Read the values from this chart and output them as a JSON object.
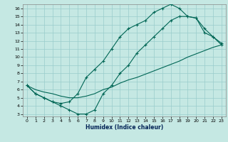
{
  "bg_color": "#c5e8e3",
  "grid_color": "#99cccc",
  "line_color": "#006655",
  "xlabel": "Humidex (Indice chaleur)",
  "xlim": [
    -0.5,
    23.5
  ],
  "ylim": [
    2.7,
    16.5
  ],
  "xticks": [
    0,
    1,
    2,
    3,
    4,
    5,
    6,
    7,
    8,
    9,
    10,
    11,
    12,
    13,
    14,
    15,
    16,
    17,
    18,
    19,
    20,
    21,
    22,
    23
  ],
  "yticks": [
    3,
    4,
    5,
    6,
    7,
    8,
    9,
    10,
    11,
    12,
    13,
    14,
    15,
    16
  ],
  "line1_x": [
    0,
    1,
    2,
    3,
    4,
    5,
    6,
    7,
    8,
    9,
    10,
    11,
    12,
    13,
    14,
    15,
    16,
    17,
    18,
    19,
    20,
    21,
    22,
    23
  ],
  "line1_y": [
    6.5,
    6.0,
    5.7,
    5.5,
    5.2,
    5.0,
    5.0,
    5.2,
    5.5,
    6.0,
    6.3,
    6.8,
    7.2,
    7.5,
    7.9,
    8.3,
    8.7,
    9.1,
    9.5,
    10.0,
    10.4,
    10.8,
    11.2,
    11.5
  ],
  "line2_x": [
    0,
    1,
    2,
    3,
    4,
    5,
    6,
    7,
    8,
    9,
    10,
    11,
    12,
    13,
    14,
    15,
    16,
    17,
    18,
    19,
    20,
    21,
    22,
    23
  ],
  "line2_y": [
    6.5,
    5.5,
    5.0,
    4.5,
    4.0,
    3.5,
    3.0,
    3.0,
    3.5,
    5.5,
    6.5,
    8.0,
    9.0,
    10.5,
    11.5,
    12.5,
    13.5,
    14.5,
    15.0,
    15.0,
    14.8,
    13.0,
    12.5,
    11.5
  ],
  "line3_x": [
    0,
    1,
    2,
    3,
    4,
    5,
    6,
    7,
    8,
    9,
    10,
    11,
    12,
    13,
    14,
    15,
    16,
    17,
    18,
    19,
    20,
    21,
    22,
    23
  ],
  "line3_y": [
    6.5,
    5.5,
    5.0,
    4.5,
    4.3,
    4.5,
    5.5,
    7.5,
    8.5,
    9.5,
    11.0,
    12.5,
    13.5,
    14.0,
    14.5,
    15.5,
    16.0,
    16.5,
    16.0,
    15.0,
    14.8,
    13.5,
    12.5,
    11.7
  ]
}
